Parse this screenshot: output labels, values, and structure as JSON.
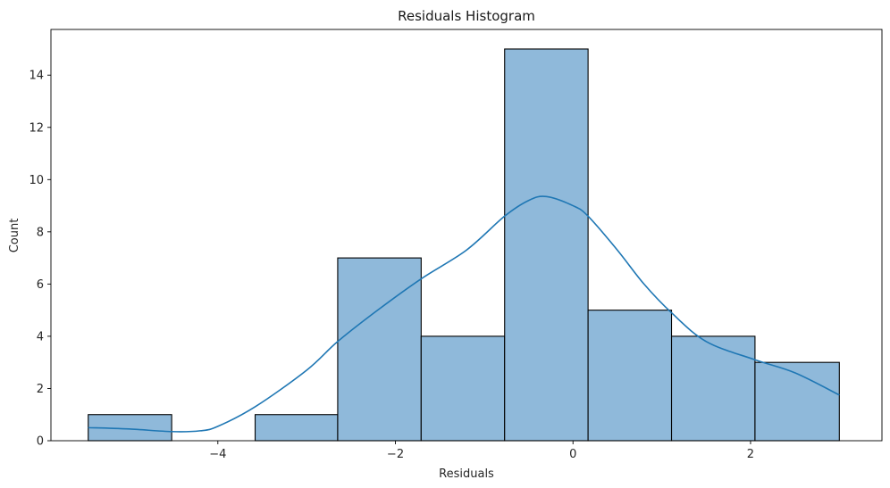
{
  "chart_data": {
    "type": "bar",
    "title": "Residuals Histogram",
    "xlabel": "Residuals",
    "ylabel": "Count",
    "xlim": [
      -5.88,
      3.48
    ],
    "ylim": [
      0,
      15.75
    ],
    "x_ticks": [
      -4,
      -2,
      0,
      2
    ],
    "x_tick_labels": [
      "−4",
      "−2",
      "0",
      "2"
    ],
    "y_ticks": [
      0,
      2,
      4,
      6,
      8,
      10,
      12,
      14
    ],
    "y_tick_labels": [
      "0",
      "2",
      "4",
      "6",
      "8",
      "10",
      "12",
      "14"
    ],
    "bin_edges": [
      -5.46,
      -4.52,
      -3.58,
      -2.65,
      -1.71,
      -0.77,
      0.17,
      1.11,
      2.05,
      3.0
    ],
    "counts": [
      1,
      0,
      1,
      7,
      4,
      15,
      5,
      4,
      3
    ],
    "kde": {
      "x": [
        -5.46,
        -5.0,
        -4.52,
        -4.2,
        -4.0,
        -3.58,
        -3.0,
        -2.65,
        -2.2,
        -1.71,
        -1.2,
        -0.77,
        -0.5,
        -0.3,
        0.0,
        0.17,
        0.5,
        0.8,
        1.11,
        1.5,
        2.05,
        2.5,
        3.0
      ],
      "y": [
        0.5,
        0.45,
        0.35,
        0.38,
        0.55,
        1.3,
        2.7,
        3.8,
        5.0,
        6.2,
        7.3,
        8.6,
        9.2,
        9.35,
        9.0,
        8.6,
        7.3,
        6.0,
        4.9,
        3.8,
        3.1,
        2.6,
        1.75
      ]
    },
    "grid": false,
    "colors": {
      "bar_fill": "#8fb9da",
      "bar_edge": "#000000",
      "kde_line": "#1f77b4"
    }
  }
}
